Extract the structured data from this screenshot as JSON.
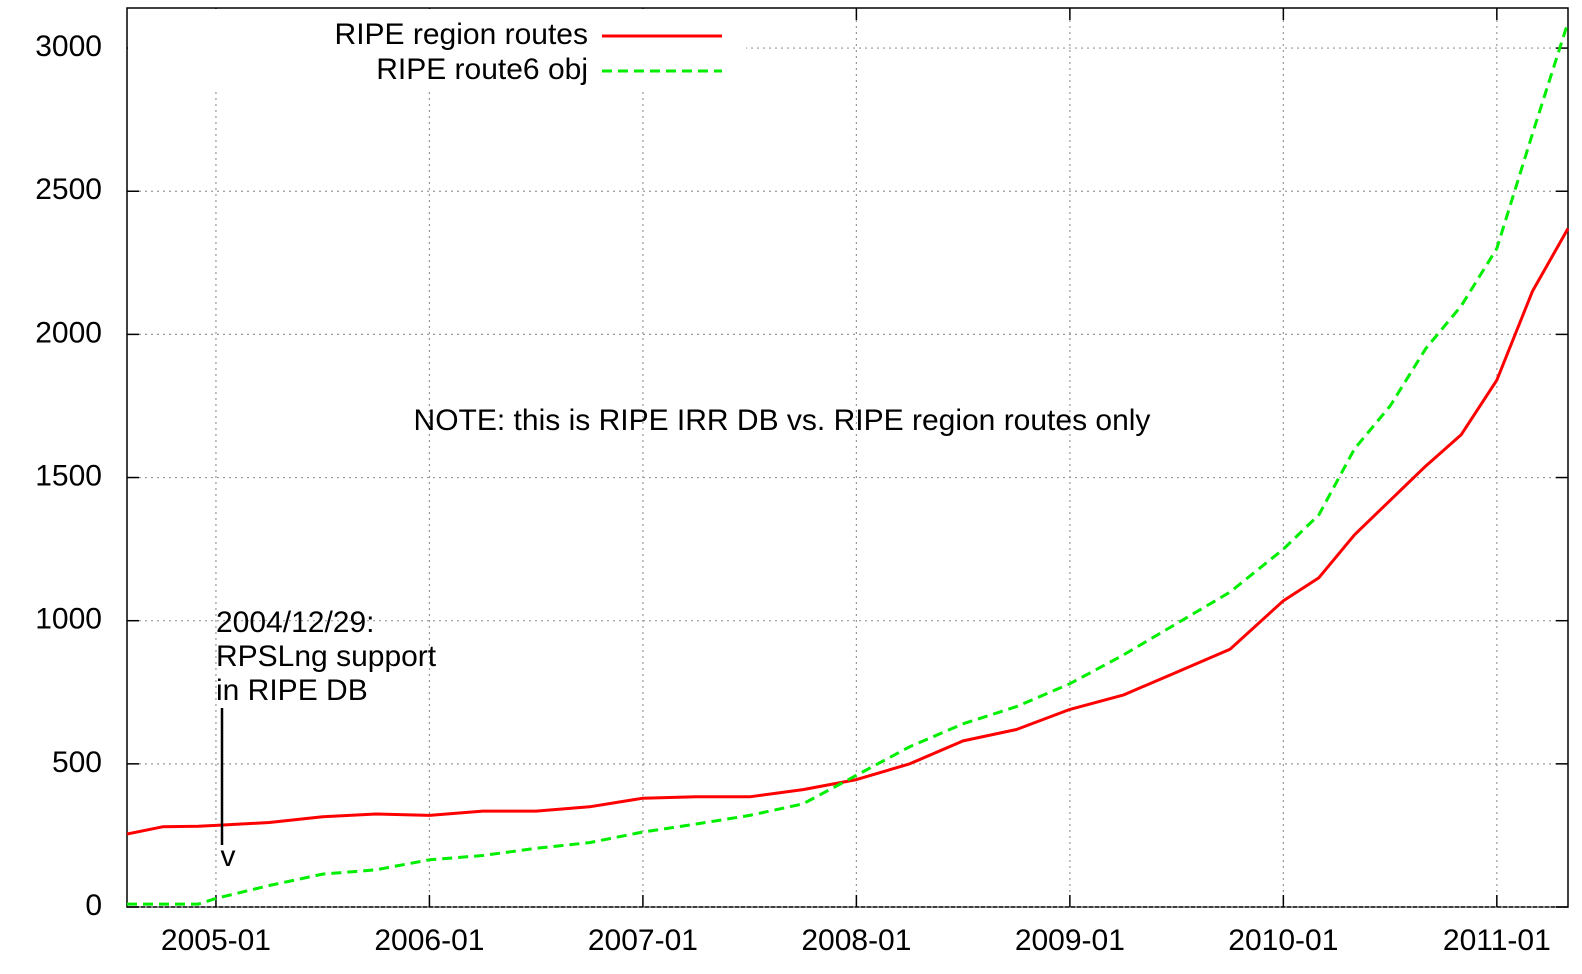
{
  "chart_data": {
    "type": "line",
    "x": [
      "2004-08",
      "2004-10",
      "2004-12",
      "2005-01",
      "2005-04",
      "2005-07",
      "2005-10",
      "2006-01",
      "2006-04",
      "2006-07",
      "2006-10",
      "2007-01",
      "2007-04",
      "2007-07",
      "2007-10",
      "2008-01",
      "2008-04",
      "2008-07",
      "2008-10",
      "2009-01",
      "2009-04",
      "2009-07",
      "2009-10",
      "2010-01",
      "2010-03",
      "2010-05",
      "2010-07",
      "2010-09",
      "2010-11",
      "2011-01",
      "2011-03",
      "2011-05"
    ],
    "series": [
      {
        "name": "RIPE region routes",
        "color": "#ff0000",
        "dashed": false,
        "values": [
          255,
          280,
          282,
          285,
          295,
          315,
          325,
          320,
          335,
          335,
          350,
          380,
          385,
          385,
          410,
          445,
          500,
          580,
          620,
          690,
          740,
          820,
          900,
          1070,
          1150,
          1300,
          1420,
          1540,
          1650,
          1840,
          2150,
          2370
        ]
      },
      {
        "name": "RIPE route6 obj",
        "color": "#00ee00",
        "dashed": true,
        "values": [
          10,
          10,
          10,
          30,
          75,
          115,
          130,
          165,
          180,
          205,
          225,
          262,
          290,
          320,
          360,
          460,
          560,
          640,
          700,
          780,
          880,
          990,
          1100,
          1250,
          1370,
          1600,
          1750,
          1950,
          2100,
          2300,
          2700,
          3090
        ]
      }
    ],
    "xlim": [
      "2004-08",
      "2011-05"
    ],
    "xticks": [
      "2005-01",
      "2006-01",
      "2007-01",
      "2008-01",
      "2009-01",
      "2010-01",
      "2011-01"
    ],
    "ylim": [
      0,
      3140
    ],
    "yticks": [
      0,
      500,
      1000,
      1500,
      2000,
      2500,
      3000
    ],
    "grid": true,
    "legend": "top-left",
    "note": "NOTE: this is RIPE IRR DB vs. RIPE region routes only",
    "event_label": [
      "2004/12/29:",
      "RPSLng support",
      "in RIPE DB"
    ],
    "event_arrow_head": "v"
  }
}
